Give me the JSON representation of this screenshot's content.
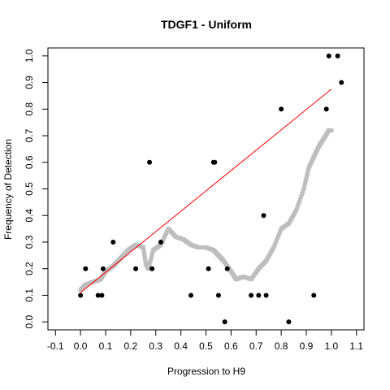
{
  "chart_data": {
    "type": "scatter",
    "title": "TDGF1 - Uniform",
    "xlabel": "Progression to H9",
    "ylabel": "Frequency of Detection",
    "xlim": [
      -0.13,
      1.13
    ],
    "ylim": [
      -0.03,
      1.03
    ],
    "xticks": [
      "-0.1",
      "0.0",
      "0.1",
      "0.2",
      "0.3",
      "0.4",
      "0.5",
      "0.6",
      "0.7",
      "0.8",
      "0.9",
      "1.0",
      "1.1"
    ],
    "yticks": [
      "0.0",
      "0.1",
      "0.2",
      "0.3",
      "0.4",
      "0.5",
      "0.6",
      "0.7",
      "0.8",
      "0.9",
      "1.0"
    ],
    "grid": false,
    "legend": "none",
    "series": [
      {
        "kind": "points",
        "color": "#000000",
        "points": [
          [
            0.0,
            0.1
          ],
          [
            0.02,
            0.2
          ],
          [
            0.07,
            0.1
          ],
          [
            0.085,
            0.1
          ],
          [
            0.09,
            0.2
          ],
          [
            0.13,
            0.3
          ],
          [
            0.22,
            0.2
          ],
          [
            0.275,
            0.6
          ],
          [
            0.285,
            0.2
          ],
          [
            0.32,
            0.3
          ],
          [
            0.44,
            0.1
          ],
          [
            0.51,
            0.2
          ],
          [
            0.53,
            0.6
          ],
          [
            0.535,
            0.6
          ],
          [
            0.55,
            0.1
          ],
          [
            0.575,
            0.0
          ],
          [
            0.585,
            0.2
          ],
          [
            0.68,
            0.1
          ],
          [
            0.71,
            0.1
          ],
          [
            0.73,
            0.4
          ],
          [
            0.74,
            0.1
          ],
          [
            0.83,
            0.0
          ],
          [
            0.8,
            0.8
          ],
          [
            0.93,
            0.1
          ],
          [
            0.98,
            0.8
          ],
          [
            0.99,
            1.0
          ],
          [
            1.025,
            1.0
          ],
          [
            1.04,
            0.9
          ]
        ]
      },
      {
        "kind": "smooth",
        "color": "#bebebe",
        "points": [
          [
            0.0,
            0.12
          ],
          [
            0.02,
            0.14
          ],
          [
            0.05,
            0.15
          ],
          [
            0.08,
            0.16
          ],
          [
            0.1,
            0.19
          ],
          [
            0.13,
            0.21
          ],
          [
            0.16,
            0.24
          ],
          [
            0.19,
            0.27
          ],
          [
            0.22,
            0.29
          ],
          [
            0.25,
            0.28
          ],
          [
            0.26,
            0.22
          ],
          [
            0.27,
            0.2
          ],
          [
            0.29,
            0.27
          ],
          [
            0.32,
            0.29
          ],
          [
            0.35,
            0.35
          ],
          [
            0.38,
            0.32
          ],
          [
            0.41,
            0.31
          ],
          [
            0.44,
            0.29
          ],
          [
            0.47,
            0.28
          ],
          [
            0.5,
            0.28
          ],
          [
            0.53,
            0.27
          ],
          [
            0.55,
            0.25
          ],
          [
            0.57,
            0.23
          ],
          [
            0.6,
            0.19
          ],
          [
            0.62,
            0.16
          ],
          [
            0.65,
            0.17
          ],
          [
            0.68,
            0.16
          ],
          [
            0.71,
            0.2
          ],
          [
            0.74,
            0.23
          ],
          [
            0.77,
            0.28
          ],
          [
            0.8,
            0.35
          ],
          [
            0.83,
            0.37
          ],
          [
            0.86,
            0.42
          ],
          [
            0.89,
            0.5
          ],
          [
            0.91,
            0.58
          ],
          [
            0.93,
            0.62
          ],
          [
            0.95,
            0.66
          ],
          [
            0.97,
            0.69
          ],
          [
            0.99,
            0.72
          ],
          [
            1.0,
            0.72
          ]
        ]
      },
      {
        "kind": "line",
        "color": "#ff0000",
        "points": [
          [
            0.0,
            0.11
          ],
          [
            1.0,
            0.875
          ]
        ]
      }
    ]
  }
}
